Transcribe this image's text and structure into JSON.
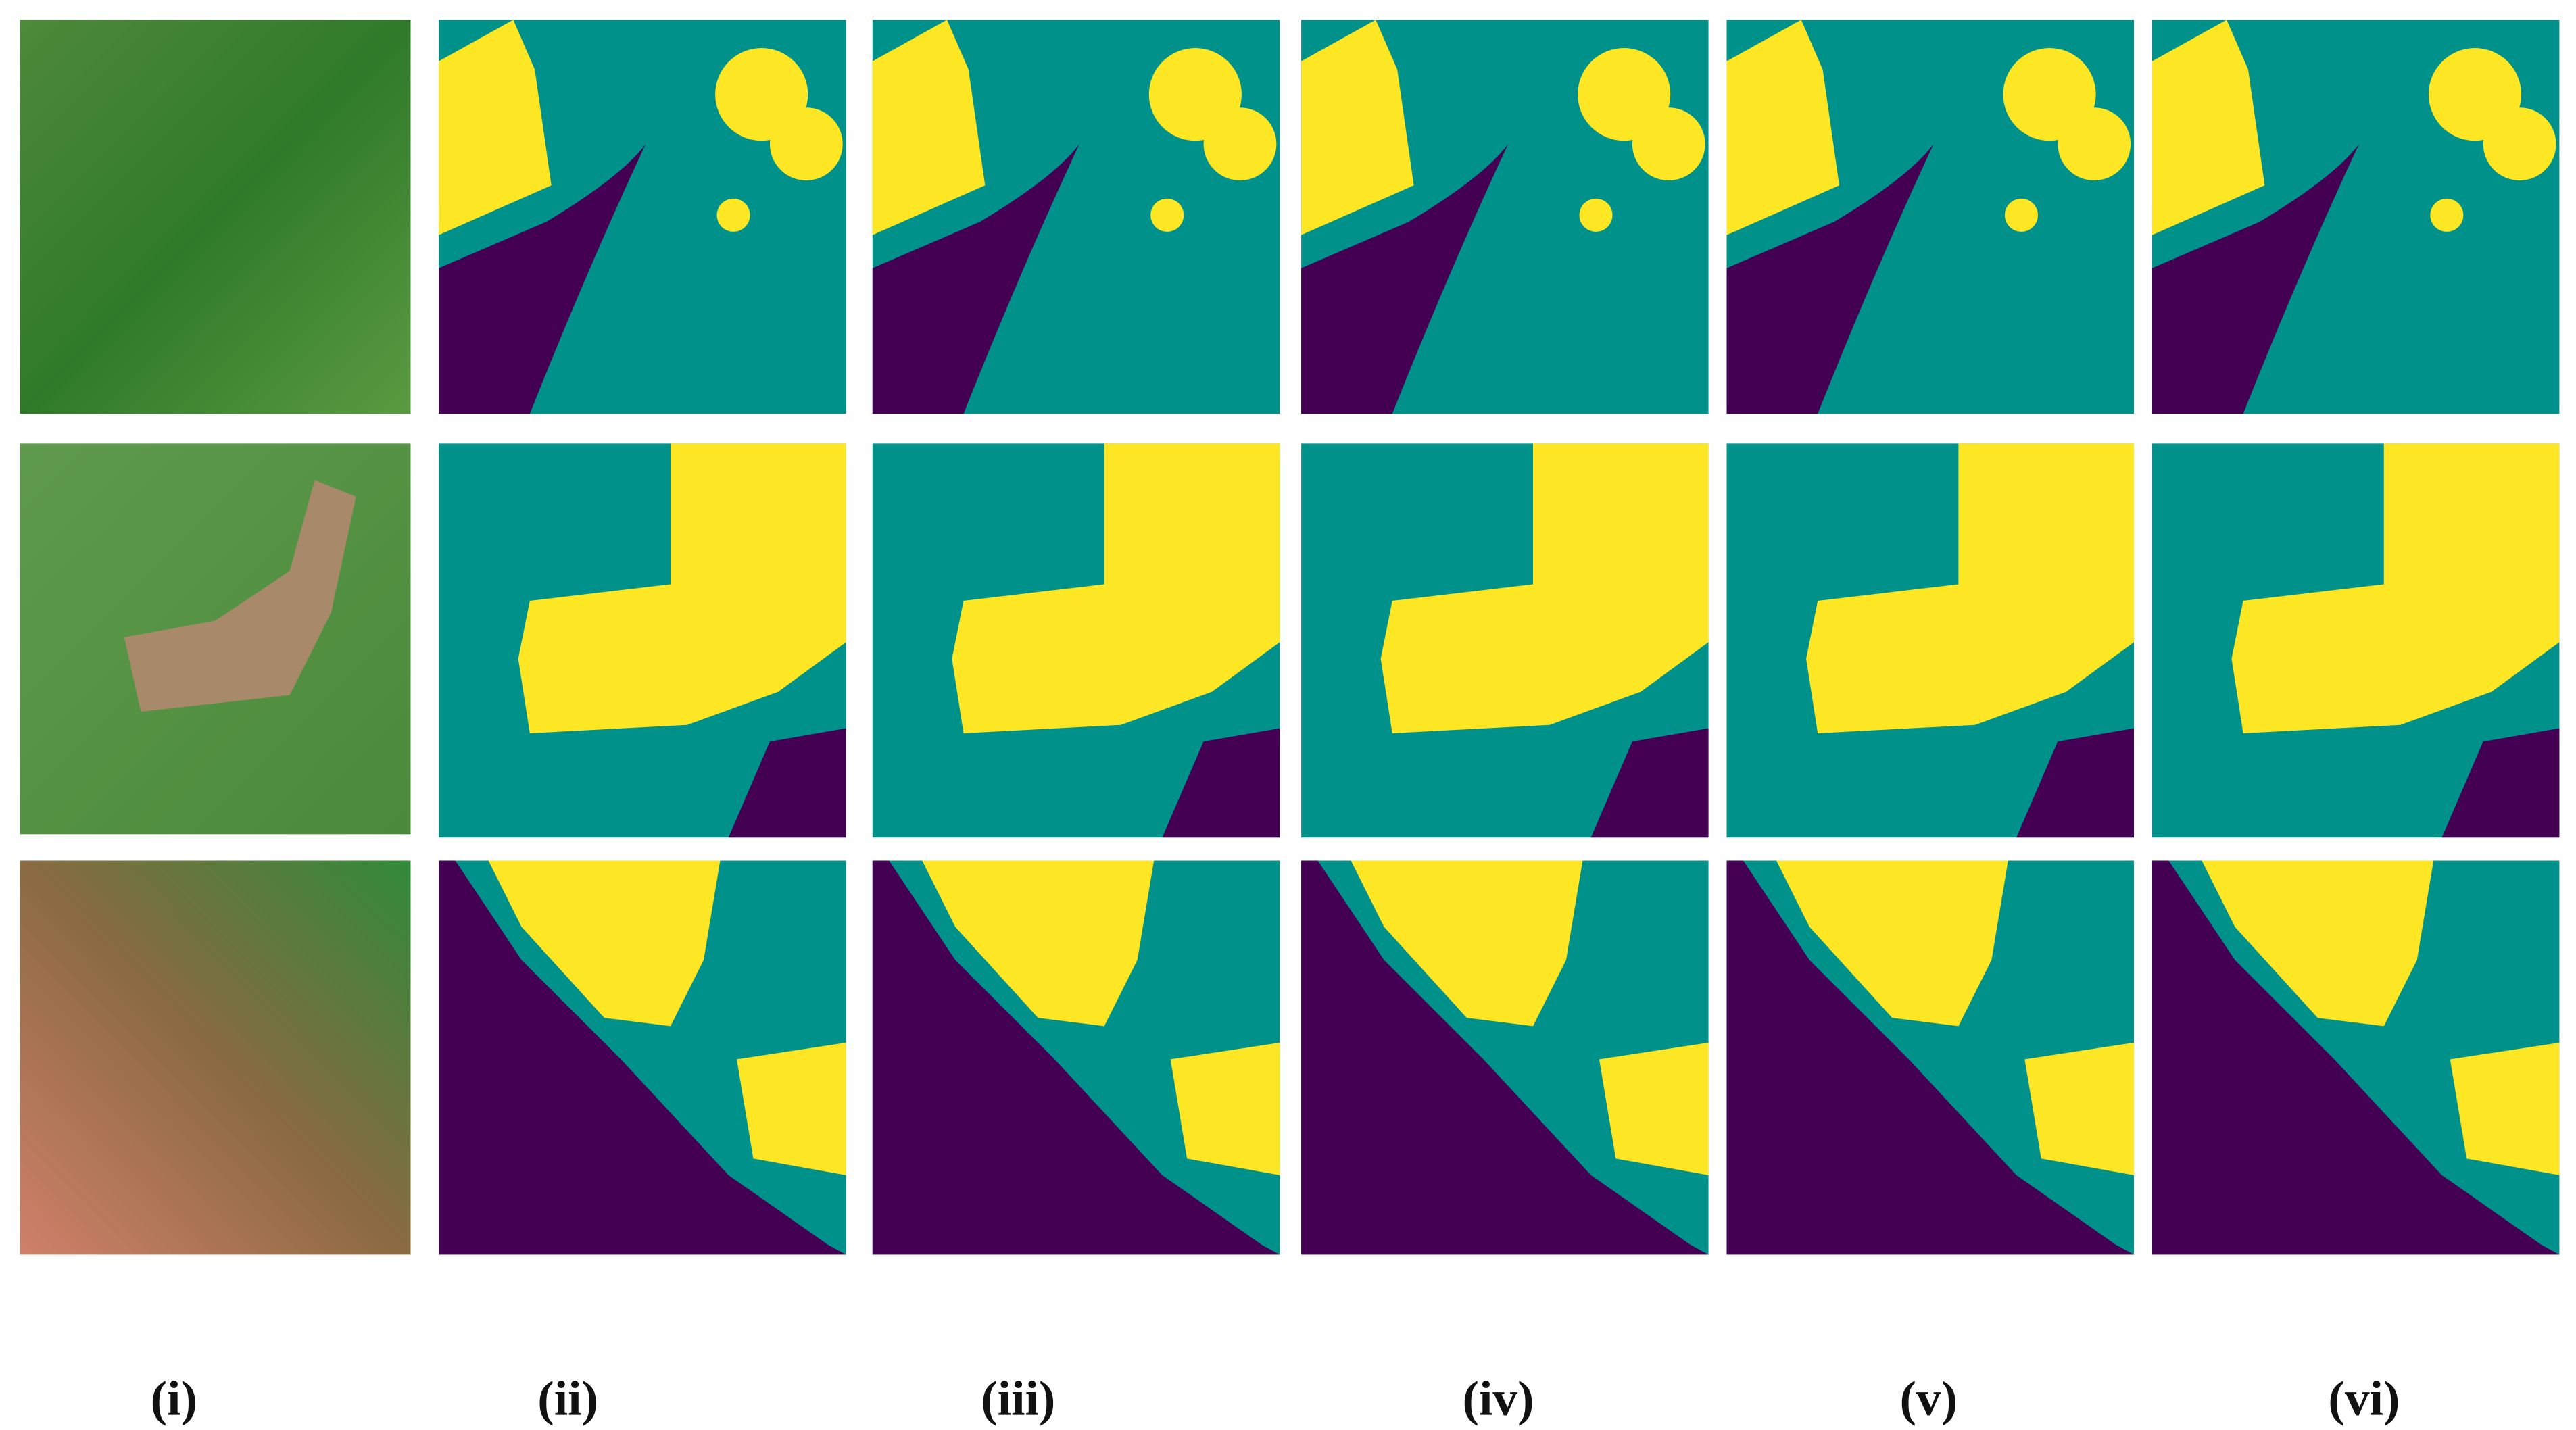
{
  "labels": [
    "(i)",
    "(ii)",
    "(iii)",
    "(iv)",
    "(v)",
    "(vi)"
  ]
}
